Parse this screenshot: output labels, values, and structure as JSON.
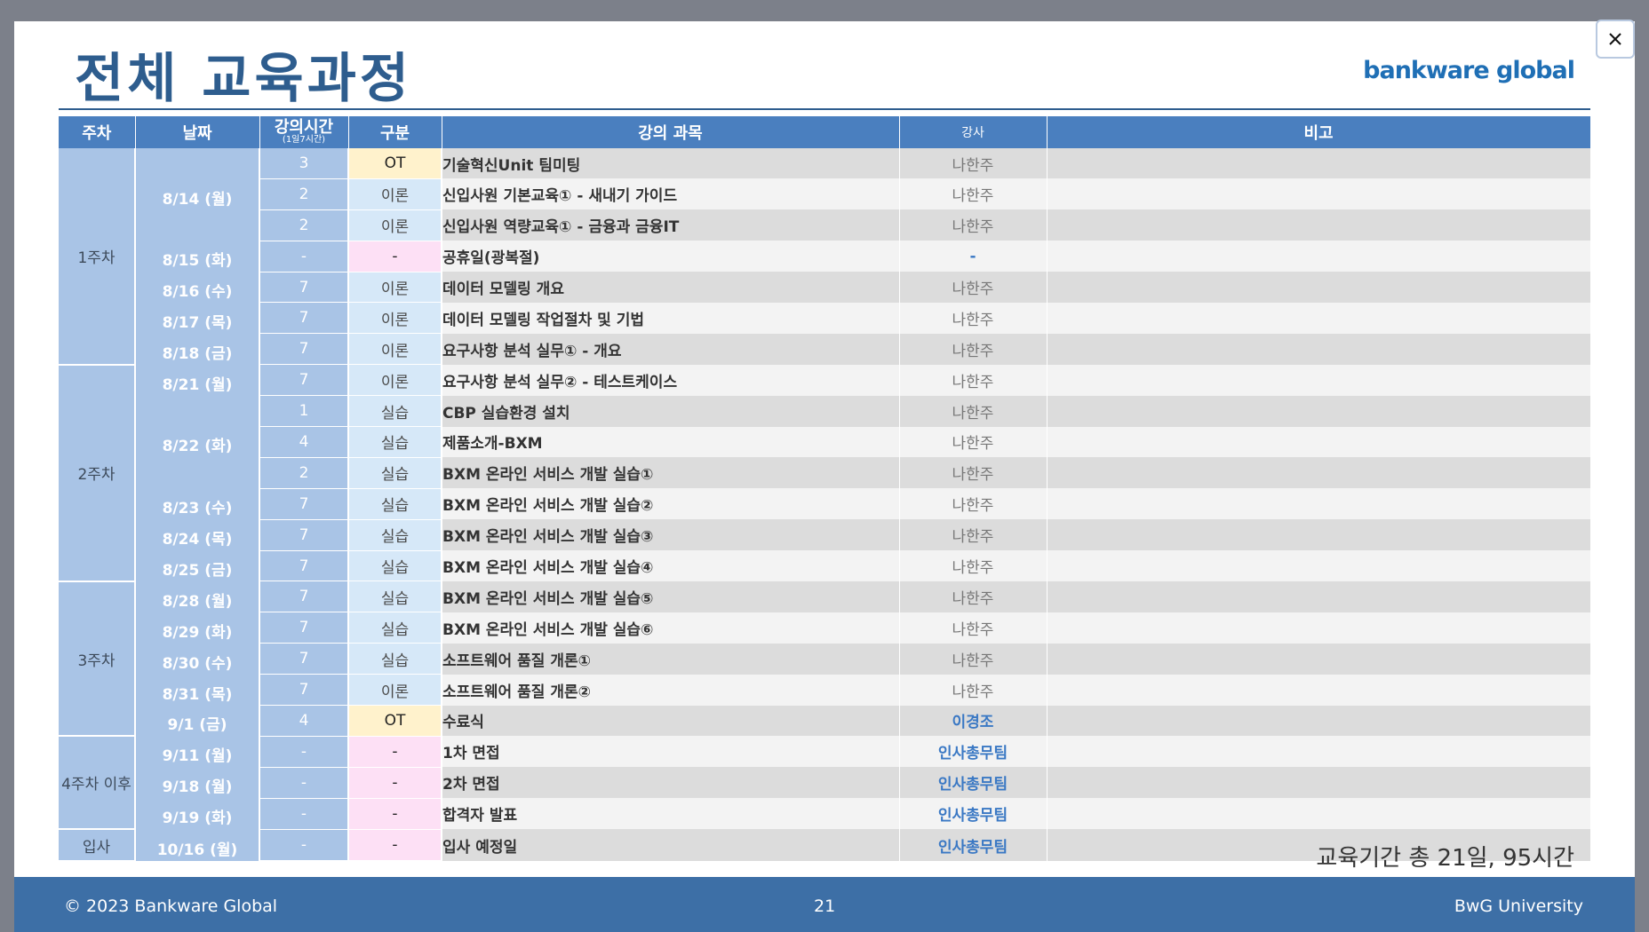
{
  "slide": {
    "title": "전체 교육과정",
    "logo": "bankware global",
    "total": "교육기간 총 21일, 95시간"
  },
  "table": {
    "headers": {
      "week": "주차",
      "date": "날짜",
      "hours": "강의시간",
      "hours_sub": "(1일7시간)",
      "category": "구분",
      "subject": "강의 과목",
      "instructor": "강사",
      "note": "비고"
    },
    "weeks": [
      "1주차",
      "2주차",
      "3주차",
      "4주차 이후",
      "입사"
    ],
    "dates": [
      "8/14 (월)",
      "8/15 (화)",
      "8/16 (수)",
      "8/17 (목)",
      "8/18 (금)",
      "8/21 (월)",
      "8/22 (화)",
      "8/23 (수)",
      "8/24 (목)",
      "8/25 (금)",
      "8/28 (월)",
      "8/29 (화)",
      "8/30 (수)",
      "8/31 (목)",
      "9/1 (금)",
      "9/11 (월)",
      "9/18 (월)",
      "9/19 (화)",
      "10/16 (월)"
    ],
    "rows": [
      {
        "hours": "3",
        "category": "OT",
        "subject": "기술혁신Unit 팀미팅",
        "instructor": "나한주",
        "note": ""
      },
      {
        "hours": "2",
        "category": "이론",
        "subject": "신입사원 기본교육① - 새내기 가이드",
        "instructor": "나한주",
        "note": ""
      },
      {
        "hours": "2",
        "category": "이론",
        "subject": "신입사원 역량교육① - 금융과 금융IT",
        "instructor": "나한주",
        "note": ""
      },
      {
        "hours": "-",
        "category": "-",
        "subject": "공휴일(광복절)",
        "instructor": "-",
        "note": ""
      },
      {
        "hours": "7",
        "category": "이론",
        "subject": "데이터 모델링 개요",
        "instructor": "나한주",
        "note": ""
      },
      {
        "hours": "7",
        "category": "이론",
        "subject": "데이터 모델링 작업절차 및 기법",
        "instructor": "나한주",
        "note": ""
      },
      {
        "hours": "7",
        "category": "이론",
        "subject": "요구사항 분석 실무① - 개요",
        "instructor": "나한주",
        "note": ""
      },
      {
        "hours": "7",
        "category": "이론",
        "subject": "요구사항 분석 실무② - 테스트케이스",
        "instructor": "나한주",
        "note": ""
      },
      {
        "hours": "1",
        "category": "실습",
        "subject": "CBP 실습환경 설치",
        "instructor": "나한주",
        "note": ""
      },
      {
        "hours": "4",
        "category": "실습",
        "subject": "제품소개-BXM",
        "instructor": "나한주",
        "note": ""
      },
      {
        "hours": "2",
        "category": "실습",
        "subject": "BXM 온라인 서비스 개발 실습①",
        "instructor": "나한주",
        "note": ""
      },
      {
        "hours": "7",
        "category": "실습",
        "subject": "BXM 온라인 서비스 개발 실습②",
        "instructor": "나한주",
        "note": ""
      },
      {
        "hours": "7",
        "category": "실습",
        "subject": "BXM 온라인 서비스 개발 실습③",
        "instructor": "나한주",
        "note": ""
      },
      {
        "hours": "7",
        "category": "실습",
        "subject": "BXM 온라인 서비스 개발 실습④",
        "instructor": "나한주",
        "note": ""
      },
      {
        "hours": "7",
        "category": "실습",
        "subject": "BXM 온라인 서비스 개발 실습⑤",
        "instructor": "나한주",
        "note": ""
      },
      {
        "hours": "7",
        "category": "실습",
        "subject": "BXM 온라인 서비스 개발 실습⑥",
        "instructor": "나한주",
        "note": ""
      },
      {
        "hours": "7",
        "category": "실습",
        "subject": "소프트웨어 품질 개론①",
        "instructor": "나한주",
        "note": ""
      },
      {
        "hours": "7",
        "category": "이론",
        "subject": "소프트웨어 품질 개론②",
        "instructor": "나한주",
        "note": ""
      },
      {
        "hours": "4",
        "category": "OT",
        "subject": "수료식",
        "instructor": "이경조",
        "note": ""
      },
      {
        "hours": "-",
        "category": "-",
        "subject": "1차 면접",
        "instructor": "인사총무팀",
        "note": ""
      },
      {
        "hours": "-",
        "category": "-",
        "subject": "2차 면접",
        "instructor": "인사총무팀",
        "note": ""
      },
      {
        "hours": "-",
        "category": "-",
        "subject": "합격자 발표",
        "instructor": "인사총무팀",
        "note": ""
      },
      {
        "hours": "-",
        "category": "-",
        "subject": "입사 예정일",
        "instructor": "인사총무팀",
        "note": ""
      }
    ]
  },
  "footer": {
    "copyright": "© 2023 Bankware Global",
    "page": "21",
    "university": "BwG University"
  },
  "controls": {
    "close_symbol": "×"
  },
  "colors": {
    "accent": "#2e5d8e",
    "header": "#4a7fbf",
    "footer": "#3d6fa6"
  }
}
